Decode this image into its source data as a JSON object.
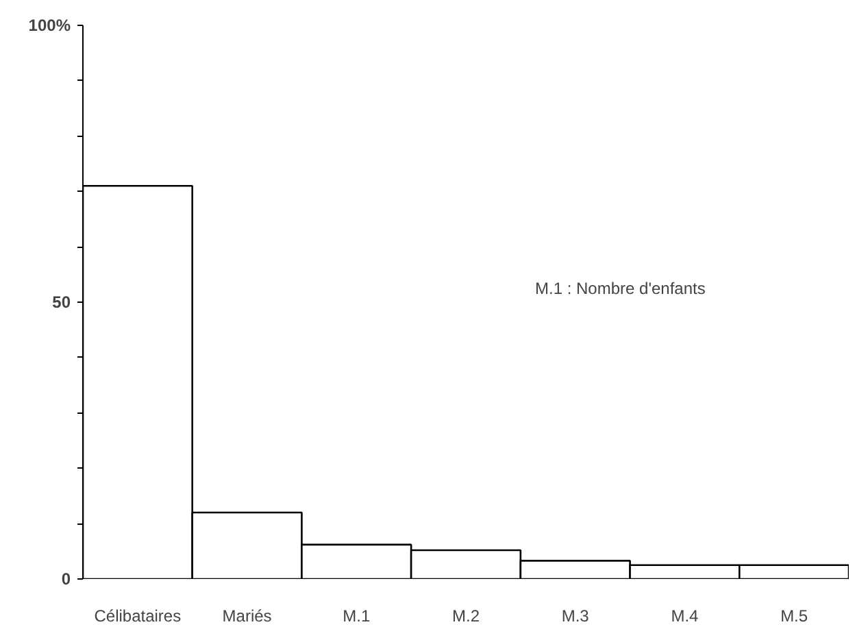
{
  "chart_data": {
    "type": "bar",
    "categories": [
      "Célibataires",
      "Mariés",
      "M.1",
      "M.2",
      "M.3",
      "M.4",
      "M.5"
    ],
    "values": [
      71,
      12,
      6.2,
      5.2,
      3.3,
      2.5,
      2.5
    ],
    "color": "#ffffff",
    "ylim": [
      0,
      100
    ],
    "yticks": [
      0,
      {
        "value": 10,
        "label": null
      },
      {
        "value": 20,
        "label": null
      },
      {
        "value": 30,
        "label": null
      },
      {
        "value": 40,
        "label": null
      },
      50,
      {
        "value": 60,
        "label": null
      },
      {
        "value": 70,
        "label": null
      },
      {
        "value": 80,
        "label": null
      },
      {
        "value": 90,
        "label": null
      },
      {
        "value": 100,
        "label": "100%"
      }
    ],
    "annotations": [
      "M.1 : Nombre d'enfants"
    ],
    "grid": false
  }
}
